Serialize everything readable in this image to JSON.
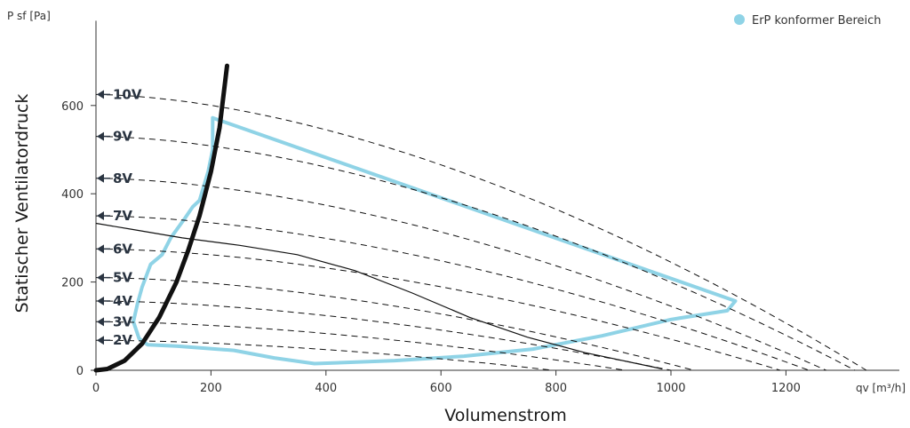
{
  "chart_data": {
    "type": "line",
    "xlabel": "Volumenstrom",
    "ylabel": "Statischer Ventilatordruck",
    "x_unit_label": "qv [m³/h]",
    "y_unit_label": "P sf [Pa]",
    "xlim": [
      0,
      1300
    ],
    "ylim": [
      0,
      800
    ],
    "x_ticks": [
      0,
      200,
      400,
      600,
      800,
      1000,
      1200
    ],
    "y_ticks": [
      0,
      200,
      400,
      600
    ],
    "legend": {
      "label": "ErP konformer Bereich",
      "color": "#8fd3e6",
      "position": "top-right"
    },
    "fan_curves": [
      {
        "name": "10V",
        "y0": 625,
        "x_end": 1340
      },
      {
        "name": "9V",
        "y0": 530,
        "x_end": 1320
      },
      {
        "name": "8V",
        "y0": 435,
        "x_end": 1270
      },
      {
        "name": "7V",
        "y0": 350,
        "x_end": 1240
      },
      {
        "name": "6V",
        "y0": 275,
        "x_end": 1190
      },
      {
        "name": "5V",
        "y0": 210,
        "x_end": 1040
      },
      {
        "name": "4V",
        "y0": 157,
        "x_end": 1000
      },
      {
        "name": "3V",
        "y0": 110,
        "x_end": 920
      },
      {
        "name": "2V",
        "y0": 68,
        "x_end": 795
      }
    ],
    "system_curve": [
      [
        0,
        0
      ],
      [
        20,
        3
      ],
      [
        50,
        22
      ],
      [
        80,
        60
      ],
      [
        110,
        120
      ],
      [
        140,
        200
      ],
      [
        160,
        270
      ],
      [
        180,
        350
      ],
      [
        200,
        450
      ],
      [
        215,
        550
      ],
      [
        228,
        690
      ]
    ],
    "resistance_curve": [
      [
        0,
        333
      ],
      [
        60,
        320
      ],
      [
        150,
        300
      ],
      [
        250,
        283
      ],
      [
        350,
        262
      ],
      [
        450,
        226
      ],
      [
        550,
        175
      ],
      [
        650,
        120
      ],
      [
        750,
        75
      ],
      [
        850,
        40
      ],
      [
        985,
        3
      ]
    ],
    "erp_region": [
      [
        203,
        572
      ],
      [
        1112,
        157
      ],
      [
        1098,
        135
      ],
      [
        1000,
        115
      ],
      [
        880,
        78
      ],
      [
        760,
        48
      ],
      [
        640,
        32
      ],
      [
        520,
        22
      ],
      [
        380,
        15
      ],
      [
        310,
        28
      ],
      [
        240,
        45
      ],
      [
        140,
        55
      ],
      [
        90,
        58
      ],
      [
        75,
        72
      ],
      [
        65,
        110
      ],
      [
        72,
        150
      ],
      [
        80,
        188
      ],
      [
        95,
        240
      ],
      [
        115,
        262
      ],
      [
        130,
        300
      ],
      [
        155,
        345
      ],
      [
        168,
        370
      ],
      [
        180,
        385
      ],
      [
        195,
        450
      ],
      [
        203,
        500
      ],
      [
        203,
        572
      ]
    ]
  }
}
